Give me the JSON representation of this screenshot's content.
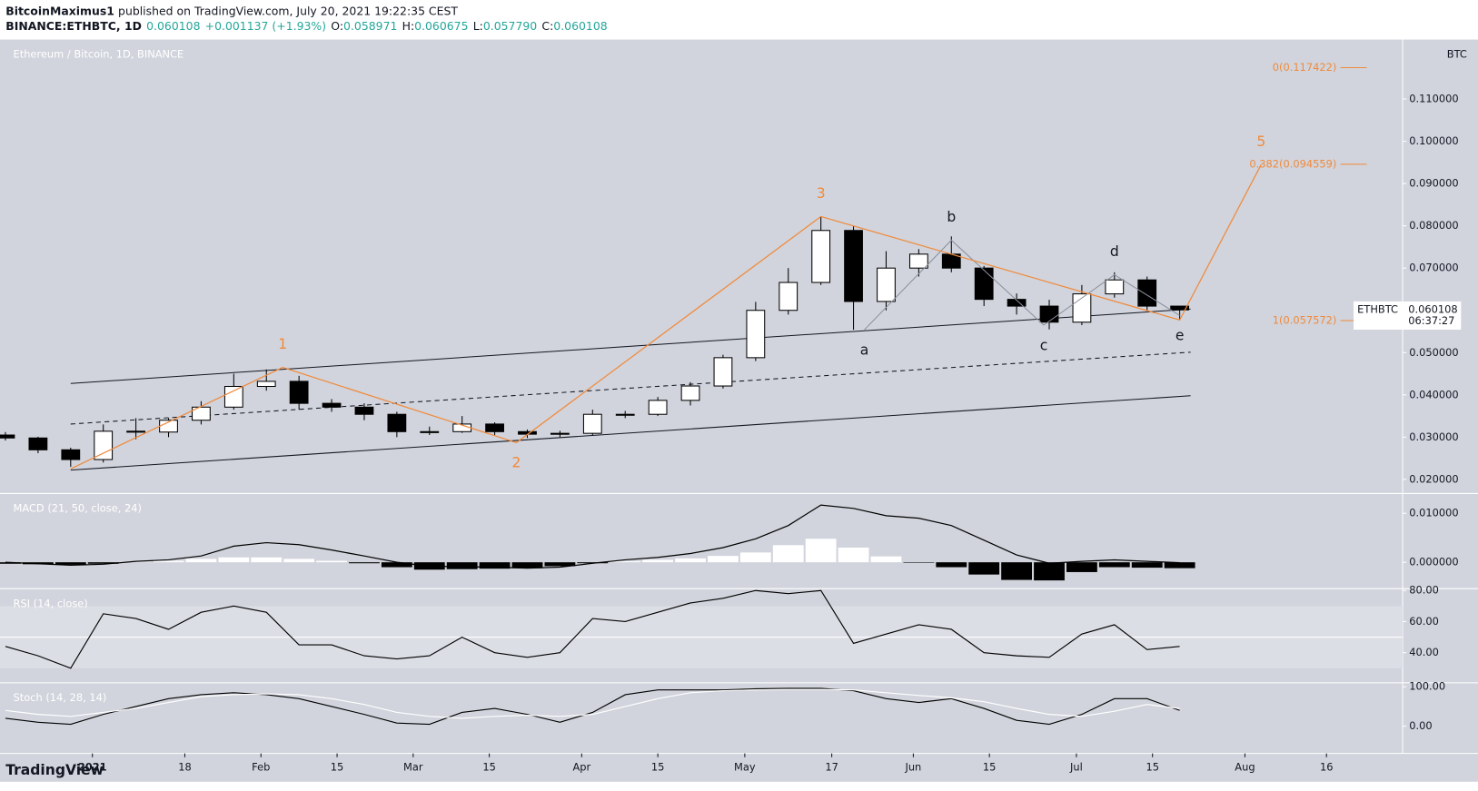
{
  "header": {
    "author": "BitcoinMaximus1",
    "published": "published on TradingView.com, July 20, 2021 19:22:35 CEST",
    "symbol": "BINANCE:ETHBTC, 1D",
    "last": "0.060108",
    "change": "+0.001137 (+1.93%)",
    "ohlc": [
      {
        "key": "O:",
        "value": "0.058971"
      },
      {
        "key": "H:",
        "value": "0.060675"
      },
      {
        "key": "L:",
        "value": "0.057790"
      },
      {
        "key": "C:",
        "value": "0.060108"
      }
    ]
  },
  "footer": {
    "brand": "TradingView"
  },
  "chart_data": [
    {
      "type": "candlestick",
      "title": "Ethereum / Bitcoin, 1D, BINANCE",
      "unit": "BTC",
      "x": [
        "2020-12-16",
        "2020-12-22",
        "2020-12-28",
        "2021-01-03",
        "2021-01-09",
        "2021-01-15",
        "2021-01-21",
        "2021-01-27",
        "2021-02-02",
        "2021-02-08",
        "2021-02-14",
        "2021-02-20",
        "2021-02-26",
        "2021-03-04",
        "2021-03-10",
        "2021-03-16",
        "2021-03-22",
        "2021-03-28",
        "2021-04-03",
        "2021-04-09",
        "2021-04-15",
        "2021-04-21",
        "2021-04-27",
        "2021-05-03",
        "2021-05-09",
        "2021-05-15",
        "2021-05-21",
        "2021-05-27",
        "2021-06-02",
        "2021-06-08",
        "2021-06-14",
        "2021-06-20",
        "2021-06-26",
        "2021-07-02",
        "2021-07-08",
        "2021-07-14",
        "2021-07-20"
      ],
      "open": [
        0.0305,
        0.0298,
        0.027,
        0.0247,
        0.0314,
        0.0312,
        0.034,
        0.0371,
        0.042,
        0.0432,
        0.038,
        0.0371,
        0.0354,
        0.0313,
        0.0313,
        0.0331,
        0.0313,
        0.0307,
        0.0309,
        0.0354,
        0.0354,
        0.0387,
        0.0421,
        0.0488,
        0.06,
        0.0666,
        0.0789,
        0.0621,
        0.07,
        0.0733,
        0.07,
        0.0626,
        0.061,
        0.0572,
        0.0639,
        0.0672,
        0.061
      ],
      "high": [
        0.0312,
        0.0301,
        0.0275,
        0.033,
        0.0345,
        0.0345,
        0.0385,
        0.045,
        0.046,
        0.0445,
        0.039,
        0.038,
        0.036,
        0.0325,
        0.035,
        0.0335,
        0.0318,
        0.0315,
        0.0365,
        0.0362,
        0.0395,
        0.043,
        0.0495,
        0.062,
        0.07,
        0.0822,
        0.08,
        0.074,
        0.0745,
        0.0775,
        0.0705,
        0.064,
        0.0625,
        0.066,
        0.069,
        0.068,
        0.060675
      ],
      "low": [
        0.0292,
        0.0262,
        0.023,
        0.024,
        0.0295,
        0.03,
        0.033,
        0.0365,
        0.041,
        0.0365,
        0.036,
        0.034,
        0.03,
        0.0305,
        0.031,
        0.0305,
        0.0298,
        0.03,
        0.0305,
        0.0345,
        0.035,
        0.0375,
        0.0415,
        0.048,
        0.059,
        0.066,
        0.0554,
        0.06,
        0.068,
        0.069,
        0.061,
        0.059,
        0.0555,
        0.0565,
        0.063,
        0.06,
        0.05779
      ],
      "close": [
        0.0298,
        0.027,
        0.0247,
        0.0314,
        0.0312,
        0.034,
        0.0371,
        0.042,
        0.0432,
        0.038,
        0.0371,
        0.0354,
        0.0313,
        0.0313,
        0.0331,
        0.0313,
        0.0307,
        0.0309,
        0.0354,
        0.0354,
        0.0387,
        0.0421,
        0.0488,
        0.06,
        0.0666,
        0.0789,
        0.0621,
        0.07,
        0.0733,
        0.07,
        0.0626,
        0.061,
        0.0572,
        0.0639,
        0.0672,
        0.061,
        0.060108
      ],
      "colors": {
        "up": "#ffffff",
        "down": "#000000",
        "wick": "#000000"
      },
      "xlim": [
        "2020-12-15",
        "2021-08-30"
      ],
      "xticks": [
        {
          "value": "2021-01-01",
          "label": "2021"
        },
        {
          "value": "2021-01-18",
          "label": "18"
        },
        {
          "value": "2021-02-01",
          "label": "Feb"
        },
        {
          "value": "2021-02-15",
          "label": "15"
        },
        {
          "value": "2021-03-01",
          "label": "Mar"
        },
        {
          "value": "2021-03-15",
          "label": "15"
        },
        {
          "value": "2021-04-01",
          "label": "Apr"
        },
        {
          "value": "2021-04-15",
          "label": "15"
        },
        {
          "value": "2021-05-01",
          "label": "May"
        },
        {
          "value": "2021-05-17",
          "label": "17"
        },
        {
          "value": "2021-06-01",
          "label": "Jun"
        },
        {
          "value": "2021-06-15",
          "label": "15"
        },
        {
          "value": "2021-07-01",
          "label": "Jul"
        },
        {
          "value": "2021-07-15",
          "label": "15"
        },
        {
          "value": "2021-08-01",
          "label": "Aug"
        },
        {
          "value": "2021-08-16",
          "label": "16"
        }
      ],
      "ylim": [
        0.01666,
        0.12407
      ],
      "yticks": [
        {
          "value": 0.02,
          "label": "0.020000"
        },
        {
          "value": 0.03,
          "label": "0.030000"
        },
        {
          "value": 0.04,
          "label": "0.040000"
        },
        {
          "value": 0.05,
          "label": "0.050000"
        },
        {
          "value": 0.06,
          "label": "0.060000"
        },
        {
          "value": 0.07,
          "label": "0.070000"
        },
        {
          "value": 0.08,
          "label": "0.080000"
        },
        {
          "value": 0.09,
          "label": "0.090000"
        },
        {
          "value": 0.1,
          "label": "0.100000"
        },
        {
          "value": 0.11,
          "label": "0.110000"
        }
      ],
      "last_price": {
        "symbol": "ETHBTC",
        "value": 0.060108,
        "countdown": "06:37:27"
      },
      "channel": [
        {
          "x": [
            "2020-12-28",
            "2021-07-22"
          ],
          "y": [
            0.0427,
            0.0603
          ],
          "dashed": false
        },
        {
          "x": [
            "2020-12-28",
            "2021-07-22"
          ],
          "y": [
            0.0331,
            0.0501
          ],
          "dashed": true
        },
        {
          "x": [
            "2020-12-28",
            "2021-07-22"
          ],
          "y": [
            0.0222,
            0.0398
          ],
          "dashed": false
        }
      ],
      "impulse": {
        "color": "#f08a3c",
        "x": [
          "2020-12-28",
          "2021-02-05",
          "2021-03-20",
          "2021-05-15",
          "2021-07-20",
          "2021-08-04"
        ],
        "y": [
          0.0225,
          0.0465,
          0.0287,
          0.0822,
          0.0577,
          0.0945
        ],
        "labels": [
          null,
          "1",
          "2",
          "3",
          null,
          "5"
        ]
      },
      "triangle": {
        "color": "#8a8f9c",
        "label_color": "#131722",
        "x": [
          "2021-05-23",
          "2021-06-08",
          "2021-06-25",
          "2021-07-08",
          "2021-07-20"
        ],
        "y": [
          0.0554,
          0.0766,
          0.0565,
          0.0684,
          0.0588
        ],
        "labels": [
          "a",
          "b",
          "c",
          "d",
          "e"
        ]
      },
      "fib": {
        "color": "#f08a3c",
        "levels": [
          {
            "label": "0(0.117422)",
            "value": 0.117422
          },
          {
            "label": "0.382(0.094559)",
            "value": 0.094559
          },
          {
            "label": "1(0.057572)",
            "value": 0.057572
          }
        ]
      }
    },
    {
      "type": "macd",
      "title": "MACD (21, 50, close, 24)",
      "ylim": [
        -0.00538,
        0.01404
      ],
      "yticks": [
        {
          "value": 0.01,
          "label": "0.010000"
        },
        {
          "value": 0,
          "label": "0.000000"
        }
      ],
      "line": {
        "color": "#000000",
        "values": [
          0,
          -0.0003,
          -0.0006,
          -0.0004,
          0.0002,
          0.0005,
          0.0013,
          0.0033,
          0.004,
          0.0036,
          0.0025,
          0.0013,
          0,
          -0.0008,
          -0.0009,
          -0.001,
          -0.0012,
          -0.001,
          -0.0002,
          0.0005,
          0.001,
          0.0018,
          0.003,
          0.0048,
          0.0075,
          0.0117,
          0.011,
          0.0095,
          0.009,
          0.0075,
          0.0045,
          0.0015,
          -0.0002,
          0.0002,
          0.0005,
          0.0002,
          -0.0001
        ]
      },
      "histogram": {
        "colors": {
          "positive": "#ffffff",
          "negative": "#000000"
        },
        "values": [
          -0.0003,
          -0.0004,
          -0.0005,
          -0.0003,
          0.0001,
          0.0003,
          0.0007,
          0.001,
          0.001,
          0.0007,
          0.0003,
          -0.0002,
          -0.001,
          -0.0015,
          -0.0014,
          -0.0013,
          -0.0012,
          -0.0008,
          -0.0002,
          0.0002,
          0.0005,
          0.0008,
          0.0013,
          0.002,
          0.0035,
          0.0048,
          0.003,
          0.0012,
          -0.0001,
          -0.001,
          -0.0025,
          -0.0036,
          -0.0037,
          -0.002,
          -0.001,
          -0.0011,
          -0.0012
        ]
      }
    },
    {
      "type": "line",
      "title": "RSI (14, close)",
      "ylim": [
        20.6,
        81.2
      ],
      "yticks": [
        {
          "value": 80,
          "label": "80.00"
        },
        {
          "value": 60,
          "label": "60.00"
        },
        {
          "value": 40,
          "label": "40.00"
        }
      ],
      "band": [
        30,
        70
      ],
      "midline": 50,
      "series": [
        {
          "color": "#000000",
          "values": [
            44,
            38,
            30,
            65,
            62,
            55,
            66,
            70,
            66,
            45,
            45,
            38,
            36,
            38,
            50,
            40,
            37,
            40,
            62,
            60,
            66,
            72,
            75,
            80,
            78,
            80,
            46,
            52,
            58,
            55,
            40,
            38,
            37,
            52,
            58,
            42,
            44
          ]
        }
      ]
    },
    {
      "type": "line",
      "title": "Stoch (14, 28, 14)",
      "ylim": [
        -69,
        110
      ],
      "yticks": [
        {
          "value": 100,
          "label": "100.00"
        },
        {
          "value": 0,
          "label": "0.00"
        }
      ],
      "series": [
        {
          "color": "#000000",
          "values": [
            20,
            10,
            5,
            30,
            50,
            70,
            80,
            85,
            80,
            70,
            50,
            30,
            8,
            5,
            35,
            45,
            30,
            10,
            35,
            80,
            92,
            92,
            92,
            95,
            96,
            96,
            90,
            70,
            60,
            70,
            45,
            15,
            5,
            30,
            70,
            70,
            40
          ]
        },
        {
          "color": "#ffffff",
          "values": [
            40,
            30,
            25,
            35,
            45,
            60,
            75,
            80,
            82,
            80,
            70,
            55,
            35,
            25,
            20,
            25,
            28,
            25,
            30,
            50,
            70,
            85,
            90,
            92,
            93,
            93,
            92,
            85,
            78,
            72,
            62,
            45,
            30,
            25,
            38,
            55,
            45
          ]
        }
      ]
    }
  ]
}
